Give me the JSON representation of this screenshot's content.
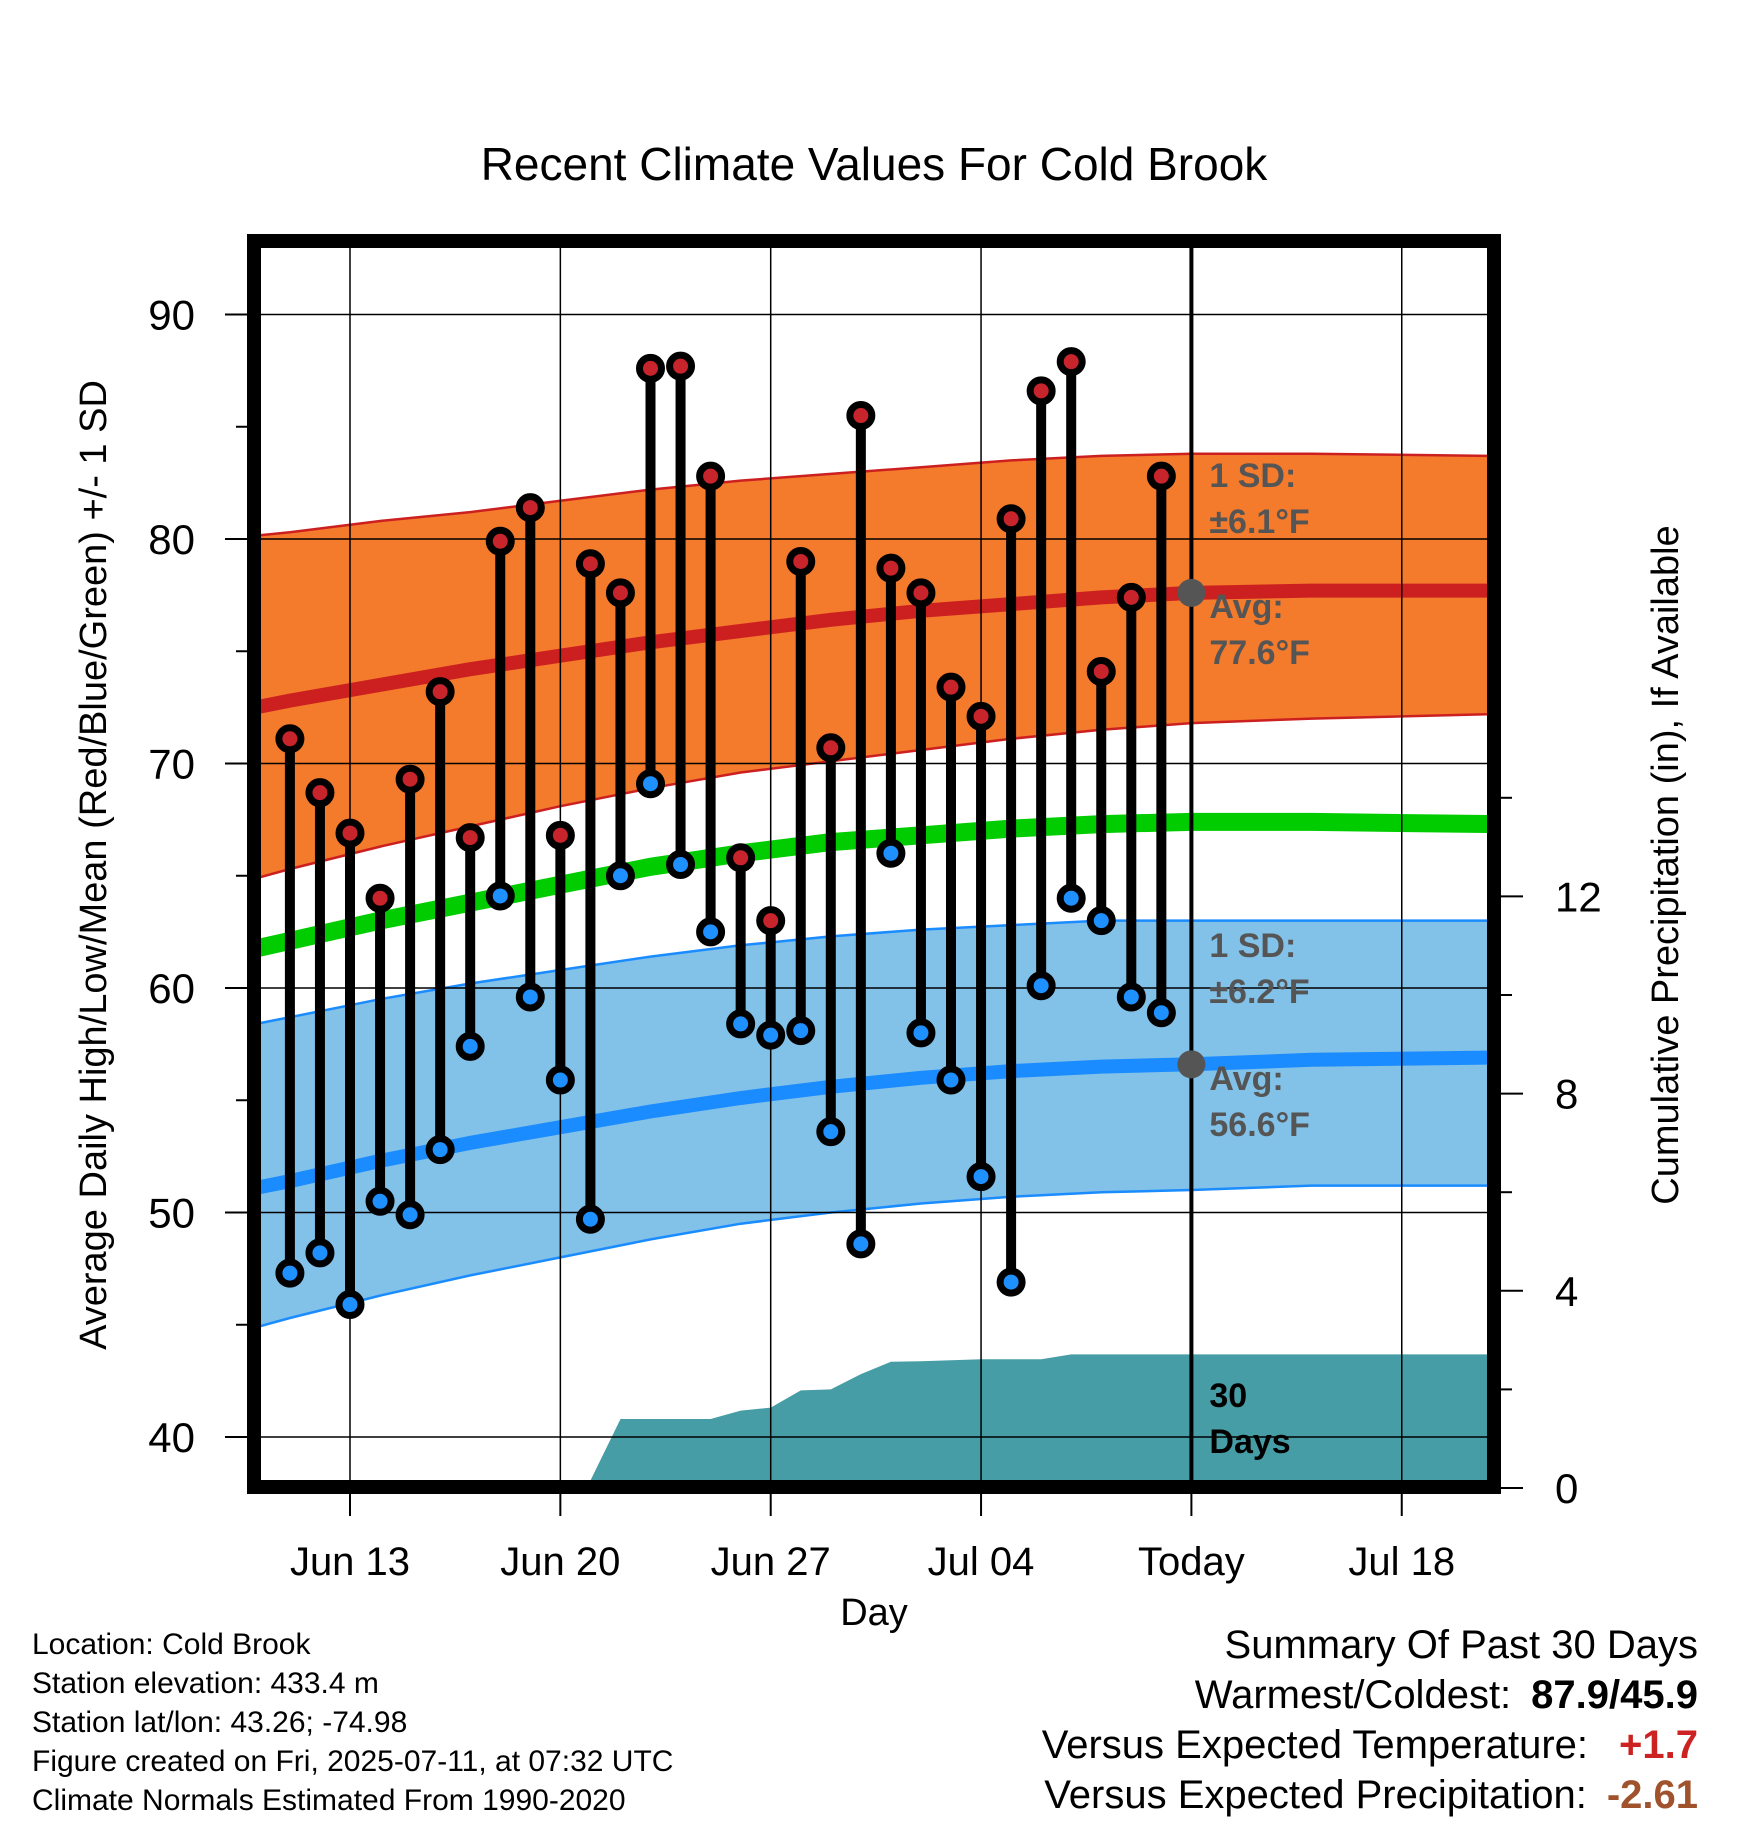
{
  "chart_data": {
    "type": "line",
    "title": "Recent Climate Values For Cold Brook",
    "xlabel": "Day",
    "ylabel": "Average Daily High/Low/Mean (Red/Blue/Green) +/- 1 SD",
    "y2label": "Cumulative Precipitation (in), If Available",
    "ylim": [
      38.3,
      93.2
    ],
    "y2lim": [
      -0.2,
      0
    ],
    "y_ticks": [
      40,
      50,
      60,
      70,
      80,
      90
    ],
    "y2_ticks": [
      0,
      4,
      8,
      12
    ],
    "x_range": [
      "2025-06-08",
      "2025-07-21"
    ],
    "x_ticks": [
      {
        "date": "2025-06-13",
        "label": "Jun 13"
      },
      {
        "date": "2025-06-20",
        "label": "Jun 20"
      },
      {
        "date": "2025-06-27",
        "label": "Jun 27"
      },
      {
        "date": "2025-07-04",
        "label": "Jul 04"
      },
      {
        "date": "2025-07-11",
        "label": "Today"
      },
      {
        "date": "2025-07-18",
        "label": "Jul 18"
      }
    ],
    "grid": true,
    "colors": {
      "high_band": "#f47a2c",
      "high_line": "#cc2020",
      "low_band": "#82c1e8",
      "low_line": "#1a8cff",
      "mean_line": "#00cc00",
      "precip": "#469da5",
      "high_dot": "#c8242c",
      "low_dot": "#1e90ff",
      "today_dot": "#555555"
    },
    "normals": {
      "dates": [
        "2025-06-08",
        "2025-06-11",
        "2025-06-14",
        "2025-06-17",
        "2025-06-20",
        "2025-06-23",
        "2025-06-26",
        "2025-06-29",
        "2025-07-02",
        "2025-07-05",
        "2025-07-08",
        "2025-07-11",
        "2025-07-15",
        "2025-07-21"
      ],
      "high_avg": [
        72.0,
        72.8,
        73.5,
        74.2,
        74.8,
        75.4,
        75.9,
        76.4,
        76.8,
        77.1,
        77.4,
        77.6,
        77.7,
        77.7
      ],
      "high_upper": [
        79.9,
        80.3,
        80.8,
        81.2,
        81.7,
        82.2,
        82.6,
        82.9,
        83.2,
        83.5,
        83.7,
        83.8,
        83.8,
        83.7
      ],
      "high_lower": [
        64.2,
        65.3,
        66.3,
        67.2,
        68.1,
        68.9,
        69.6,
        70.1,
        70.6,
        71.1,
        71.5,
        71.8,
        72.0,
        72.2
      ],
      "mean_avg": [
        61.2,
        62.1,
        63.0,
        63.8,
        64.6,
        65.4,
        66.0,
        66.5,
        66.8,
        67.1,
        67.3,
        67.4,
        67.4,
        67.3
      ],
      "low_avg": [
        50.6,
        51.4,
        52.3,
        53.1,
        53.8,
        54.5,
        55.1,
        55.6,
        56.0,
        56.3,
        56.5,
        56.6,
        56.8,
        56.9
      ],
      "low_upper": [
        57.9,
        58.7,
        59.5,
        60.2,
        60.8,
        61.4,
        61.9,
        62.3,
        62.6,
        62.8,
        63.0,
        63.0,
        63.0,
        63.0
      ],
      "low_lower": [
        44.2,
        45.3,
        46.3,
        47.2,
        48.0,
        48.8,
        49.5,
        50.0,
        50.4,
        50.7,
        50.9,
        51.0,
        51.2,
        51.2
      ]
    },
    "series": [
      {
        "name": "High",
        "dates": [
          "2025-06-11",
          "2025-06-12",
          "2025-06-13",
          "2025-06-14",
          "2025-06-15",
          "2025-06-16",
          "2025-06-17",
          "2025-06-18",
          "2025-06-19",
          "2025-06-20",
          "2025-06-21",
          "2025-06-22",
          "2025-06-23",
          "2025-06-24",
          "2025-06-25",
          "2025-06-26",
          "2025-06-27",
          "2025-06-28",
          "2025-06-29",
          "2025-06-30",
          "2025-07-01",
          "2025-07-02",
          "2025-07-03",
          "2025-07-04",
          "2025-07-05",
          "2025-07-06",
          "2025-07-07",
          "2025-07-08",
          "2025-07-09",
          "2025-07-10"
        ],
        "values": [
          71.1,
          68.7,
          66.9,
          64.0,
          69.3,
          73.2,
          66.7,
          79.9,
          81.4,
          66.8,
          78.9,
          77.6,
          87.6,
          87.7,
          82.8,
          65.8,
          63.0,
          79.0,
          70.7,
          85.5,
          78.7,
          77.6,
          73.4,
          72.1,
          80.9,
          86.6,
          87.9,
          74.1,
          77.4,
          82.8
        ]
      },
      {
        "name": "Low",
        "dates": [
          "2025-06-11",
          "2025-06-12",
          "2025-06-13",
          "2025-06-14",
          "2025-06-15",
          "2025-06-16",
          "2025-06-17",
          "2025-06-18",
          "2025-06-19",
          "2025-06-20",
          "2025-06-21",
          "2025-06-22",
          "2025-06-23",
          "2025-06-24",
          "2025-06-25",
          "2025-06-26",
          "2025-06-27",
          "2025-06-28",
          "2025-06-29",
          "2025-06-30",
          "2025-07-01",
          "2025-07-02",
          "2025-07-03",
          "2025-07-04",
          "2025-07-05",
          "2025-07-06",
          "2025-07-07",
          "2025-07-08",
          "2025-07-09",
          "2025-07-10"
        ],
        "values": [
          47.3,
          48.2,
          45.9,
          50.5,
          49.9,
          52.8,
          57.4,
          64.1,
          59.6,
          55.9,
          49.7,
          65.0,
          69.1,
          65.5,
          62.5,
          58.4,
          57.9,
          58.1,
          53.6,
          48.6,
          66.0,
          58.0,
          55.9,
          51.6,
          46.9,
          60.1,
          64.0,
          63.0,
          59.6,
          58.9
        ]
      }
    ],
    "precipitation": {
      "dates": [
        "2025-06-08",
        "2025-06-16",
        "2025-06-18",
        "2025-06-19",
        "2025-06-21",
        "2025-06-22",
        "2025-06-25",
        "2025-06-26",
        "2025-06-27",
        "2025-06-28",
        "2025-06-29",
        "2025-06-30",
        "2025-07-01",
        "2025-07-02",
        "2025-07-04",
        "2025-07-05",
        "2025-07-06",
        "2025-07-07",
        "2025-07-11",
        "2025-07-21"
      ],
      "values": [
        0.0,
        0.0,
        0.0,
        0.12,
        0.15,
        1.4,
        1.4,
        1.57,
        1.63,
        1.98,
        2.0,
        2.31,
        2.56,
        2.57,
        2.61,
        2.61,
        2.61,
        2.71,
        2.71,
        2.71
      ]
    },
    "annotations": {
      "high_sd": {
        "label": "1 SD:",
        "value": "±6.1°F"
      },
      "high_avg": {
        "label": "Avg:",
        "value": "77.6°F"
      },
      "low_sd": {
        "label": "1 SD:",
        "value": "±6.2°F"
      },
      "low_avg": {
        "label": "Avg:",
        "value": "56.6°F"
      },
      "days": [
        "30",
        "Days"
      ]
    }
  },
  "info": {
    "location": "Location: Cold Brook",
    "elevation": "Station elevation: 433.4 m",
    "latlon": "Station lat/lon: 43.26; -74.98",
    "created": "Figure created on Fri, 2025-07-11, at 07:32 UTC",
    "normals": "Climate Normals Estimated From 1990-2020"
  },
  "summary": {
    "title": "Summary Of Past 30 Days",
    "warmest_coldest_label": "Warmest/Coldest:",
    "warmest_coldest_value": "87.9/45.9",
    "temp_label": "Versus Expected Temperature:",
    "temp_value": "+1.7",
    "temp_color": "#cc2222",
    "precip_label": "Versus Expected Precipitation:",
    "precip_value": "-2.61",
    "precip_color": "#a0522d"
  }
}
